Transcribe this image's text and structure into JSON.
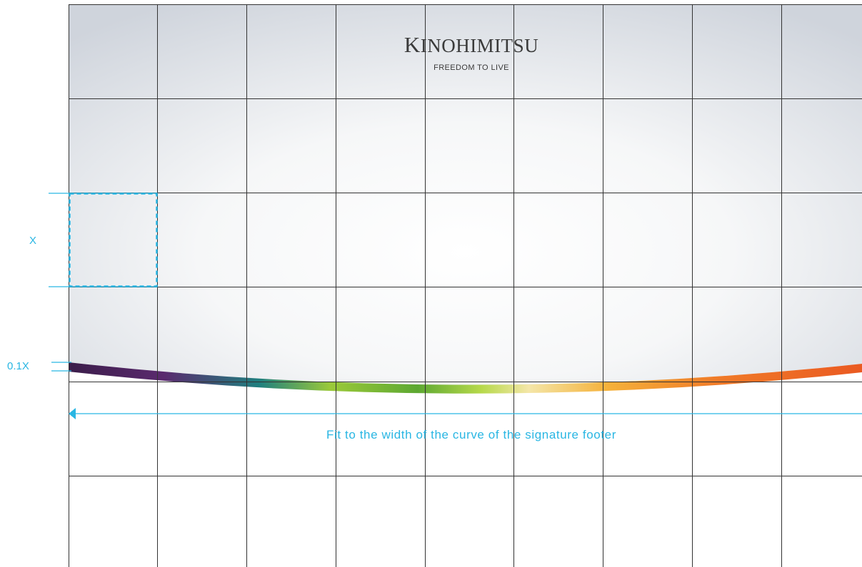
{
  "logo": {
    "brand_first_letter": "K",
    "brand_rest": "INOHIMITSU",
    "tagline": "FREEDOM TO LIVE"
  },
  "dimensions": {
    "x_label": "X",
    "gap_label": "0.1X"
  },
  "caption": "Fit to the width of the curve of the signature footer",
  "colors": {
    "annotation": "#29b6e3",
    "grid_line": "#333333",
    "background_light": "#ffffff",
    "background_edge": "#cfd4dc",
    "footer_gradient": [
      "#3b1d4a",
      "#5a2a6e",
      "#1f7f7f",
      "#9bc93a",
      "#5da832",
      "#b6d94a",
      "#f4e6a8",
      "#f5b13a",
      "#f07a28",
      "#ea5a22"
    ]
  },
  "icons": {
    "arrow": "arrow-left-icon"
  }
}
